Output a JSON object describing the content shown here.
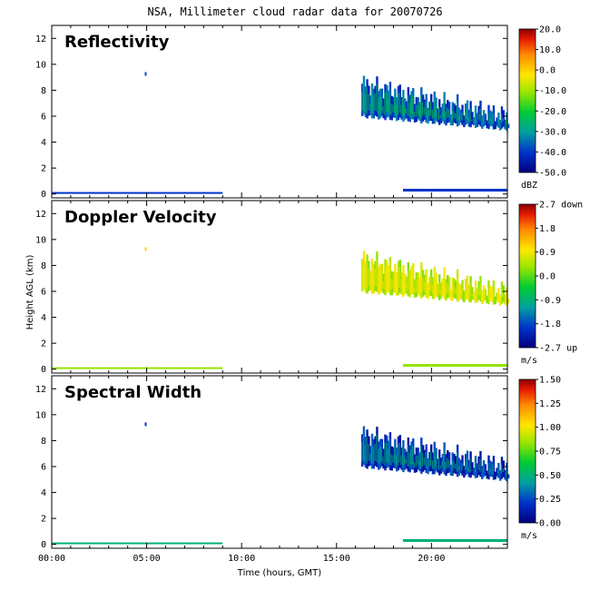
{
  "title": "NSA, Millimeter cloud radar data for 20070726",
  "chart_data": {
    "type": "heatmap",
    "title": "NSA, Millimeter cloud radar data for 20070726",
    "xlabel": "Time (hours, GMT)",
    "ylabel": "Height AGL (km)",
    "x_ticks": [
      "00:00",
      "05:00",
      "10:00",
      "15:00",
      "20:00"
    ],
    "xlim": [
      0,
      24
    ],
    "ylim": [
      -0.3,
      13
    ],
    "y_ticks": [
      "0",
      "2",
      "4",
      "6",
      "8",
      "10",
      "12"
    ],
    "grid": false,
    "cloud_layer": {
      "start_hour": 16.3,
      "end_hour": 24,
      "top_km": [
        8.5,
        6.0
      ],
      "base_km": [
        6.0,
        5.0
      ]
    },
    "panels": [
      {
        "name": "Reflectivity",
        "unit": "dBZ",
        "colorbar_labels": [
          "20.0",
          "10.0",
          "0.0",
          "-10.0",
          "-20.0",
          "-30.0",
          "-40.0",
          "-50.0"
        ],
        "colorbar_range": [
          -50,
          20
        ],
        "typical_cloud_value": -38
      },
      {
        "name": "Doppler Velocity",
        "unit": "m/s",
        "colorbar_labels": [
          "2.7 down",
          "1.8",
          "0.9",
          "0.0",
          "-0.9",
          "-1.8",
          "-2.7 up"
        ],
        "colorbar_range": [
          -2.7,
          2.7
        ],
        "typical_cloud_value": 0.6
      },
      {
        "name": "Spectral Width",
        "unit": "m/s",
        "colorbar_labels": [
          "1.50",
          "1.25",
          "1.00",
          "0.75",
          "0.50",
          "0.25",
          "0.00"
        ],
        "colorbar_range": [
          0,
          1.5
        ],
        "typical_cloud_value": 0.18
      }
    ]
  }
}
